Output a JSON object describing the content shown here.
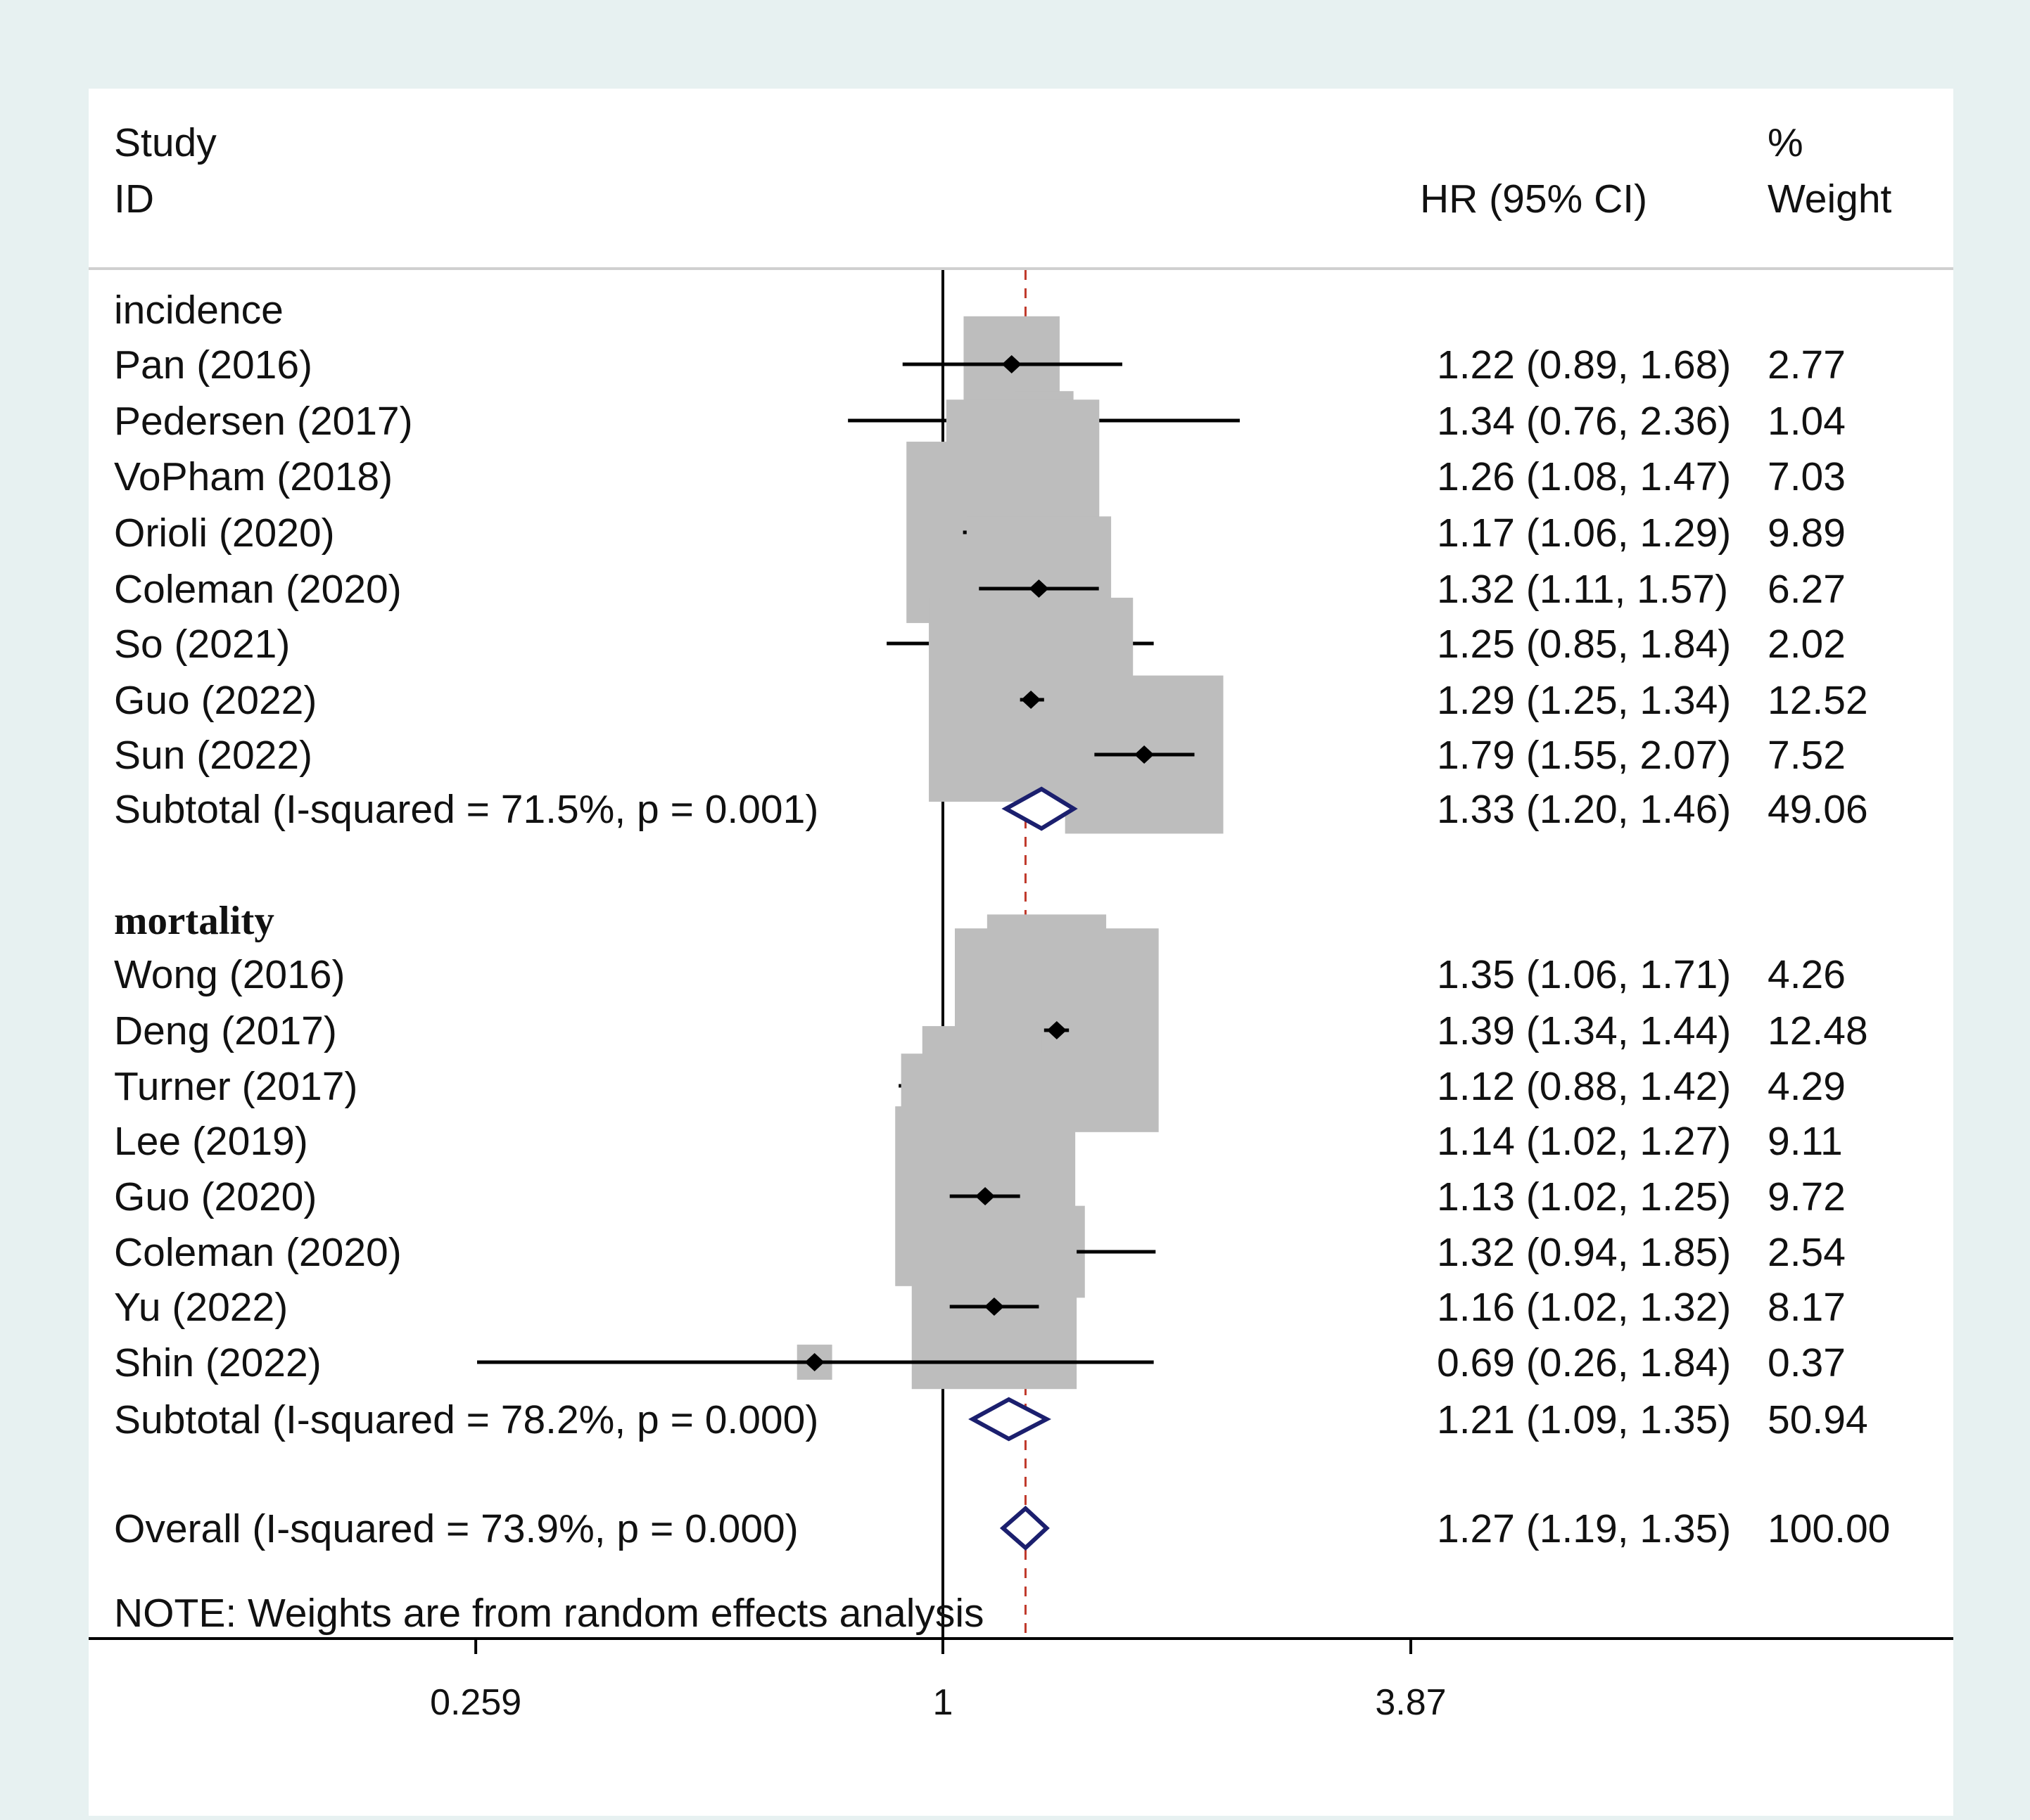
{
  "chart_data": {
    "type": "forest",
    "header": {
      "study_line1": "Study",
      "study_line2": "ID",
      "hr_col": "HR (95% CI)",
      "weight_line1": "%",
      "weight_line2": "Weight"
    },
    "axis": {
      "scale": "log",
      "range": [
        0.259,
        3.87
      ],
      "null_line": 1,
      "overall_line": 1.27,
      "ticks": [
        {
          "value": 0.259,
          "label": "0.259"
        },
        {
          "value": 1,
          "label": "1"
        },
        {
          "value": 3.87,
          "label": "3.87"
        }
      ]
    },
    "groups": [
      {
        "label": "incidence",
        "studies": [
          {
            "study": "Pan  (2016)",
            "hr": 1.22,
            "lo": 0.89,
            "hi": 1.68,
            "ci_text": "1.22 (0.89, 1.68)",
            "weight": 2.77,
            "weight_text": "2.77"
          },
          {
            "study": "Pedersen (2017)",
            "hr": 1.34,
            "lo": 0.76,
            "hi": 2.36,
            "ci_text": "1.34 (0.76, 2.36)",
            "weight": 1.04,
            "weight_text": "1.04"
          },
          {
            "study": "VoPham (2018)",
            "hr": 1.26,
            "lo": 1.08,
            "hi": 1.47,
            "ci_text": "1.26 (1.08, 1.47)",
            "weight": 7.03,
            "weight_text": "7.03"
          },
          {
            "study": "Orioli (2020)",
            "hr": 1.17,
            "lo": 1.06,
            "hi": 1.29,
            "ci_text": "1.17 (1.06, 1.29)",
            "weight": 9.89,
            "weight_text": "9.89"
          },
          {
            "study": "Coleman (2020)",
            "hr": 1.32,
            "lo": 1.11,
            "hi": 1.57,
            "ci_text": "1.32 (1.11, 1.57)",
            "weight": 6.27,
            "weight_text": "6.27"
          },
          {
            "study": "So (2021)",
            "hr": 1.25,
            "lo": 0.85,
            "hi": 1.84,
            "ci_text": "1.25 (0.85, 1.84)",
            "weight": 2.02,
            "weight_text": "2.02"
          },
          {
            "study": "Guo (2022)",
            "hr": 1.29,
            "lo": 1.25,
            "hi": 1.34,
            "ci_text": "1.29 (1.25, 1.34)",
            "weight": 12.52,
            "weight_text": "12.52"
          },
          {
            "study": "Sun (2022)",
            "hr": 1.79,
            "lo": 1.55,
            "hi": 2.07,
            "ci_text": "1.79 (1.55, 2.07)",
            "weight": 7.52,
            "weight_text": "7.52"
          }
        ],
        "subtotal": {
          "label": "Subtotal  (I-squared = 71.5%, p = 0.001)",
          "hr": 1.33,
          "lo": 1.2,
          "hi": 1.46,
          "ci_text": "1.33 (1.20, 1.46)",
          "weight_text": "49.06"
        }
      },
      {
        "label": "mortality",
        "studies": [
          {
            "study": "Wong (2016)",
            "hr": 1.35,
            "lo": 1.06,
            "hi": 1.71,
            "ci_text": "1.35 (1.06, 1.71)",
            "weight": 4.26,
            "weight_text": "4.26"
          },
          {
            "study": "Deng (2017)",
            "hr": 1.39,
            "lo": 1.34,
            "hi": 1.44,
            "ci_text": "1.39 (1.34, 1.44)",
            "weight": 12.48,
            "weight_text": "12.48"
          },
          {
            "study": "Turner (2017)",
            "hr": 1.12,
            "lo": 0.88,
            "hi": 1.42,
            "ci_text": "1.12 (0.88, 1.42)",
            "weight": 4.29,
            "weight_text": "4.29"
          },
          {
            "study": "Lee (2019)",
            "hr": 1.14,
            "lo": 1.02,
            "hi": 1.27,
            "ci_text": "1.14 (1.02, 1.27)",
            "weight": 9.11,
            "weight_text": "9.11"
          },
          {
            "study": "Guo (2020)",
            "hr": 1.13,
            "lo": 1.02,
            "hi": 1.25,
            "ci_text": "1.13 (1.02, 1.25)",
            "weight": 9.72,
            "weight_text": "9.72"
          },
          {
            "study": "Coleman (2020)",
            "hr": 1.32,
            "lo": 0.94,
            "hi": 1.85,
            "ci_text": "1.32 (0.94, 1.85)",
            "weight": 2.54,
            "weight_text": "2.54"
          },
          {
            "study": "Yu (2022)",
            "hr": 1.16,
            "lo": 1.02,
            "hi": 1.32,
            "ci_text": "1.16 (1.02, 1.32)",
            "weight": 8.17,
            "weight_text": "8.17"
          },
          {
            "study": "Shin (2022)",
            "hr": 0.69,
            "lo": 0.26,
            "hi": 1.84,
            "ci_text": "0.69 (0.26, 1.84)",
            "weight": 0.37,
            "weight_text": "0.37"
          }
        ],
        "subtotal": {
          "label": "Subtotal  (I-squared = 78.2%, p = 0.000)",
          "hr": 1.21,
          "lo": 1.09,
          "hi": 1.35,
          "ci_text": "1.21 (1.09, 1.35)",
          "weight_text": "50.94"
        }
      }
    ],
    "overall": {
      "label": "Overall  (I-squared = 73.9%, p = 0.000)",
      "hr": 1.27,
      "lo": 1.19,
      "hi": 1.35,
      "ci_text": "1.27 (1.19, 1.35)",
      "weight_text": "100.00"
    },
    "note": "NOTE: Weights are from random effects analysis",
    "colors": {
      "diamond": "#1b1f6e",
      "square": "#bdbdbd",
      "ref_line": "#c0392b",
      "panel": "#ffffff",
      "background": "#e7f1f1"
    }
  }
}
